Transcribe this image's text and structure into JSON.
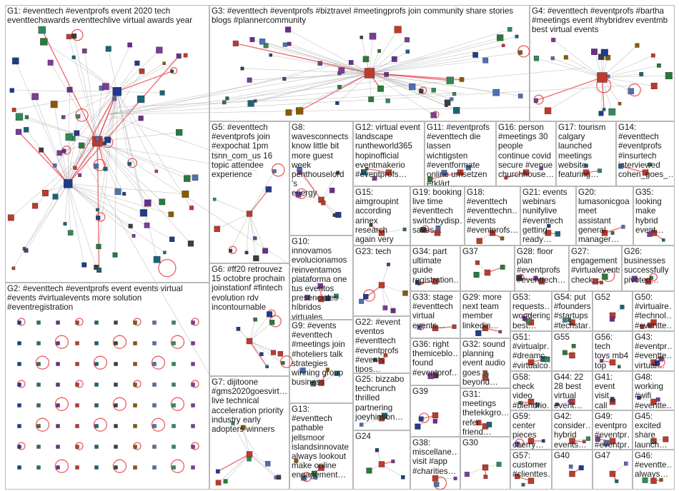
{
  "accent_colors": {
    "edge": "#a9a9a9",
    "selfloop": "#e8343a",
    "border": "#b9b9b9"
  },
  "groups": [
    {
      "id": "G1",
      "label": "G1: #eventtech #eventprofs event 2020 tech\neventtechawards eventtechlive virtual awards year"
    },
    {
      "id": "G3",
      "label": "G3: #eventtech #eventprofs #biztravel #meetingprofs join community share stories\nblogs #plannercommunity"
    },
    {
      "id": "G4",
      "label": "G4: #eventtech #eventprofs #bartha\n#meetings event #hybridrev eventmb\nbest virtual events"
    },
    {
      "id": "G5",
      "label": "G5: #eventtech\n#eventprofs join\n#expochat 1pm\ntsnn_com_us 16\ntopic attendee\nexperience"
    },
    {
      "id": "G8",
      "label": "G8:\nwavesconnects\nknow little bit\nmore guest\nweek\npenthouselord 's\nenergy"
    },
    {
      "id": "G12",
      "label": "G12: virtual event\nlandscape\nruntheworld365\nhopinofficial\neventmakerio\n#eventprofs…"
    },
    {
      "id": "G11",
      "label": "G11: #eventprofs\n#eventtech die\nlassen wichtigsten\n#eventformate\nonline umsetzen\nerklärt…"
    },
    {
      "id": "G16",
      "label": "G16: person\n#meetings 30\npeople\ncontinue covid\nsecure #venue\nchurchhouse…"
    },
    {
      "id": "G17",
      "label": "G17: tourism\ncalgary\nlaunched\nmeetings\nwebsite\nfeaturing…"
    },
    {
      "id": "G14",
      "label": "G14:\n#eventtech\n#eventprofs\n#insurtech\ninterviewed\ncohen_goes_…"
    },
    {
      "id": "G15",
      "label": "G15:\naimgroupint\naccording\narinex\nresearch\nagain very\nclear one…"
    },
    {
      "id": "G19",
      "label": "G19: booking\nlive time\n#eventtech\nswitchbydisp…\nsaves…"
    },
    {
      "id": "G18",
      "label": "G18:\n#eventtech\n#eventtechn…\n#events\n#eventprofs…"
    },
    {
      "id": "G21",
      "label": "G21: events\nwebinars\nnunifylive\n#eventtech\ngetting ready…"
    },
    {
      "id": "G20",
      "label": "G20:\nlumasonicgoa\nmeet assistant\ngeneral\nmanager…"
    },
    {
      "id": "G35",
      "label": "G35: looking\nmake\nhybrid\nevent…"
    },
    {
      "id": "G10",
      "label": "G10: innovamos\nevolucionamos\nreinventamos\nplataforma one\ntus eventos\npresenciales\nhíbridos\nvirtuales"
    },
    {
      "id": "G23",
      "label": "G23: tech"
    },
    {
      "id": "G34",
      "label": "G34: part\nultimate\nguide\nregistration…"
    },
    {
      "id": "G37",
      "label": "G37"
    },
    {
      "id": "G28",
      "label": "G28: floor\nplan\n#eventprofs\n#eventtech…"
    },
    {
      "id": "G27",
      "label": "G27:\nengagement\n#virtualevents\ncheck…"
    },
    {
      "id": "G26",
      "label": "G26:\nbusinesses\nsuccessfully\npivoted…"
    },
    {
      "id": "G2",
      "label": "G2: #eventtech #eventprofs event events virtual\n#events #virtualevents more solution\n#eventregistration"
    },
    {
      "id": "G6",
      "label": "G6: #ff20 retrouvez\n15 octobre prochain\njoinstationf #fintech\nevolution rdv\nincontournable"
    },
    {
      "id": "G33",
      "label": "G33: stage\n#eventtech\nvirtual\nevents…"
    },
    {
      "id": "G29",
      "label": "G29: more\nnext team\nmember\nlinkedin…"
    },
    {
      "id": "G53",
      "label": "G53:\nrequests…\nwondering\nbest…"
    },
    {
      "id": "G54",
      "label": "G54: put\n#founders\n#startups\n#techstar…"
    },
    {
      "id": "G52",
      "label": "G52"
    },
    {
      "id": "G50",
      "label": "G50:\n#virtualre…\n#technol…\n#eventte…"
    },
    {
      "id": "G9",
      "label": "G9: #events\n#eventtech\n#meetings join\n#hoteliers talk\nstrategies\nwinning group\nbusiness"
    },
    {
      "id": "G22",
      "label": "G22: #event\neventos\n#eventtech\n#eventprofs\n#events tipos…"
    },
    {
      "id": "G36",
      "label": "G36: right\nthemiceblo…\nfound\n#eventprof…"
    },
    {
      "id": "G32",
      "label": "G32: sound\nplanning\nevent audio\ngoes\nbeyond…"
    },
    {
      "id": "G51",
      "label": "G51:\n#virtualpr…\n#dreamc…\n#virtualco…"
    },
    {
      "id": "G55",
      "label": "G55"
    },
    {
      "id": "G56",
      "label": "G56: tech\ntoys mb4\ntop\nfavorite…"
    },
    {
      "id": "G43",
      "label": "G43:\n#eventpr…\n#eventte…\nvirtual…"
    },
    {
      "id": "G58",
      "label": "G58:\ncheck\nvideo\n#blendrio…"
    },
    {
      "id": "G44",
      "label": "G44: 22\n28 best\nvirtual\nevent…"
    },
    {
      "id": "G41",
      "label": "G41:\nevent visit\ncall\n8527422…"
    },
    {
      "id": "G48",
      "label": "G48:\nworking\n#wifi\n#eventte…"
    },
    {
      "id": "G7",
      "label": "G7: dijitoone\n#gms2020goesvirt…\nlive technical\nacceleration priority\nindustry early\nadopters winners"
    },
    {
      "id": "G13",
      "label": "G13: #eventtech\npathable\njellsmoor\nislandsinnovate\nalways lookout\nmake online\nengagement…"
    },
    {
      "id": "G25",
      "label": "G25: bizzabo\ntechcrunch\nthrilled\npartnering\njoeyhinson…"
    },
    {
      "id": "G39",
      "label": "G39"
    },
    {
      "id": "G31",
      "label": "G31:\nmeetings\nthetekkgro…\nrefer friend…"
    },
    {
      "id": "G59",
      "label": "G59:\ncenter\npieces\ncherry…"
    },
    {
      "id": "G42",
      "label": "G42:\nconsider…\nhybrid\nevents…"
    },
    {
      "id": "G49",
      "label": "G49:\neventpro\n#eventpr…\n#eventpr…"
    },
    {
      "id": "G45",
      "label": "G45:\nexcited\nshare\nlaunch…"
    },
    {
      "id": "G24",
      "label": "G24"
    },
    {
      "id": "G38",
      "label": "G38:\nmiscellane…\nvisit #app\n#charities…"
    },
    {
      "id": "G30",
      "label": "G30"
    },
    {
      "id": "G57",
      "label": "G57:\ncustomer\n#clienttes…"
    },
    {
      "id": "G40",
      "label": "G40"
    },
    {
      "id": "G47",
      "label": "G47"
    },
    {
      "id": "G46",
      "label": "G46:\n#eventte…\nalways…"
    }
  ]
}
